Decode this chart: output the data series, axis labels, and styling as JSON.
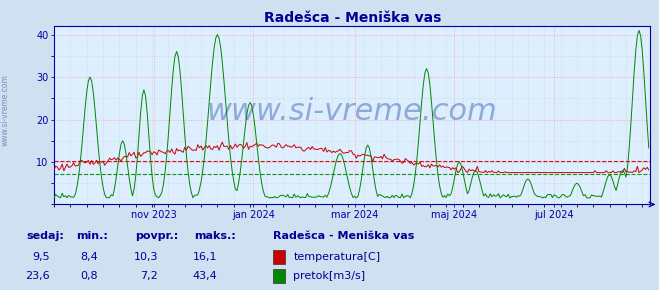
{
  "title": "Radešca - Meniška vas",
  "title_color": "#000099",
  "bg_color": "#d0e0f0",
  "plot_bg_color": "#ddeeff",
  "grid_color_major": "#ff9999",
  "grid_color_minor": "#aaccaa",
  "xlim_start": 0,
  "xlim_end": 365,
  "ylim": [
    0,
    42
  ],
  "yticks": [
    10,
    20,
    30,
    40
  ],
  "temp_color": "#cc0000",
  "flow_color": "#008800",
  "watermark": "www.si-vreme.com",
  "watermark_color": "#3355aa",
  "watermark_alpha": 0.45,
  "watermark_fontsize": 22,
  "legend_title": "Radešca - Meniška vas",
  "legend_items": [
    {
      "label": "temperatura[C]",
      "color": "#cc0000"
    },
    {
      "label": "pretok[m3/s]",
      "color": "#008800"
    }
  ],
  "table_headers": [
    "sedaj:",
    "min.:",
    "povpr.:",
    "maks.:"
  ],
  "table_temp": [
    "9,5",
    "8,4",
    "10,3",
    "16,1"
  ],
  "table_flow": [
    "23,6",
    "0,8",
    "7,2",
    "43,4"
  ],
  "table_color": "#000099",
  "avg_temp_line": 10.3,
  "avg_flow_line": 7.2,
  "axis_color": "#0000aa",
  "month_positions": [
    61,
    122,
    184,
    245,
    306
  ],
  "month_labels": [
    "nov 2023",
    "jan 2024",
    "mar 2024",
    "maj 2024",
    "jul 2024"
  ]
}
